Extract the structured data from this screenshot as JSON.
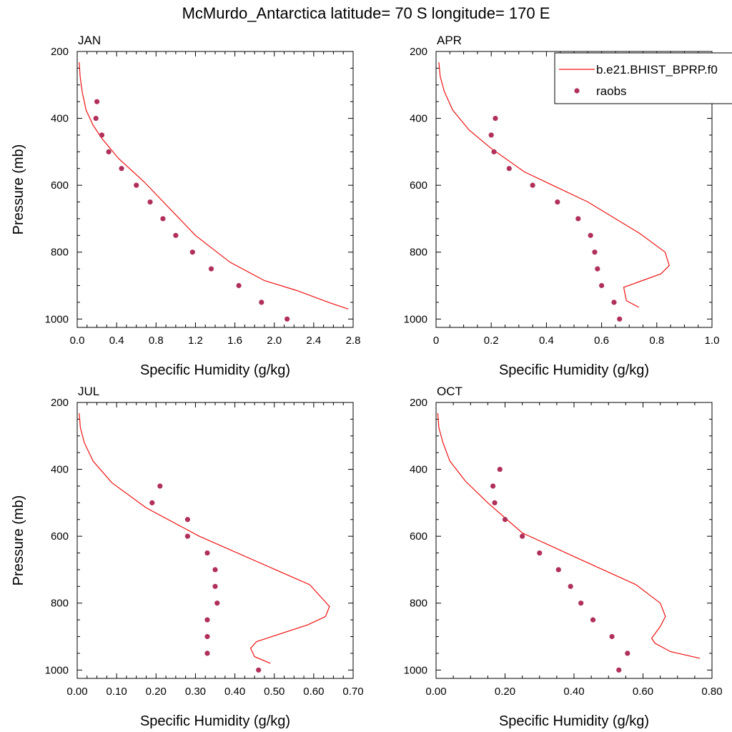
{
  "title": "McMurdo_Antarctica  latitude= 70 S longitude= 170 E",
  "legend": {
    "placement": "top-right",
    "entries": [
      {
        "label": "b.e21.BHIST_BPRP.f0",
        "style": "line",
        "color": "#ee1111"
      },
      {
        "label": "raobs",
        "style": "marker",
        "color": "#b0305a"
      }
    ]
  },
  "colors": {
    "model": "#ee1111",
    "raobs": "#b0305a"
  },
  "chart_data": [
    {
      "type": "line",
      "panel": "JAN",
      "xlabel": "Specific Humidity (g/kg)",
      "ylabel": "Pressure (mb)",
      "xlim": [
        0,
        2.8
      ],
      "ylim": [
        200,
        1025
      ],
      "y_reversed": true,
      "xticks": [
        "0.0",
        "0.4",
        "0.8",
        "1.2",
        "1.6",
        "2.0",
        "2.4",
        "2.8"
      ],
      "yticks": [
        "200",
        "400",
        "600",
        "800",
        "1000"
      ],
      "series": [
        {
          "name": "b.e21.BHIST_BPRP.f0",
          "kind": "line",
          "x": [
            0.02,
            0.03,
            0.05,
            0.09,
            0.16,
            0.25,
            0.42,
            0.68,
            1.2,
            1.55,
            1.9,
            2.23,
            2.55,
            2.75
          ],
          "y": [
            232,
            275,
            320,
            375,
            420,
            460,
            520,
            590,
            750,
            830,
            885,
            915,
            950,
            970
          ]
        },
        {
          "name": "raobs",
          "kind": "marker",
          "x": [
            0.2,
            0.19,
            0.25,
            0.32,
            0.45,
            0.6,
            0.74,
            0.87,
            1.0,
            1.17,
            1.36,
            1.64,
            1.87,
            2.13
          ],
          "y": [
            350,
            400,
            450,
            500,
            550,
            600,
            650,
            700,
            750,
            800,
            850,
            900,
            950,
            1000
          ]
        }
      ]
    },
    {
      "type": "line",
      "panel": "APR",
      "xlabel": "Specific Humidity (g/kg)",
      "ylabel": "",
      "xlim": [
        0,
        1.0
      ],
      "ylim": [
        200,
        1025
      ],
      "y_reversed": true,
      "xticks": [
        "0",
        "0.2",
        "0.4",
        "0.6",
        "0.8",
        "1.0"
      ],
      "yticks": [
        "200",
        "400",
        "600",
        "800",
        "1000"
      ],
      "series": [
        {
          "name": "b.e21.BHIST_BPRP.f0",
          "kind": "line",
          "x": [
            0.01,
            0.015,
            0.03,
            0.06,
            0.12,
            0.2,
            0.32,
            0.55,
            0.74,
            0.83,
            0.845,
            0.815,
            0.68,
            0.69,
            0.735
          ],
          "y": [
            232,
            275,
            320,
            375,
            435,
            490,
            560,
            650,
            745,
            800,
            840,
            865,
            905,
            945,
            965
          ]
        },
        {
          "name": "raobs",
          "kind": "marker",
          "x": [
            0.215,
            0.2,
            0.21,
            0.265,
            0.35,
            0.44,
            0.515,
            0.56,
            0.575,
            0.585,
            0.6,
            0.645,
            0.665
          ],
          "y": [
            400,
            450,
            500,
            550,
            600,
            650,
            700,
            750,
            800,
            850,
            900,
            950,
            1000
          ]
        }
      ]
    },
    {
      "type": "line",
      "panel": "JUL",
      "xlabel": "Specific Humidity (g/kg)",
      "ylabel": "Pressure (mb)",
      "xlim": [
        0,
        0.7
      ],
      "ylim": [
        200,
        1025
      ],
      "y_reversed": true,
      "xticks": [
        "0.00",
        "0.10",
        "0.20",
        "0.30",
        "0.40",
        "0.50",
        "0.60",
        "0.70"
      ],
      "yticks": [
        "200",
        "400",
        "600",
        "800",
        "1000"
      ],
      "series": [
        {
          "name": "b.e21.BHIST_BPRP.f0",
          "kind": "line",
          "x": [
            0.005,
            0.008,
            0.018,
            0.04,
            0.088,
            0.175,
            0.31,
            0.59,
            0.64,
            0.63,
            0.585,
            0.455,
            0.44,
            0.45,
            0.49
          ],
          "y": [
            232,
            275,
            320,
            375,
            440,
            515,
            600,
            745,
            810,
            840,
            865,
            915,
            935,
            960,
            980
          ]
        },
        {
          "name": "raobs",
          "kind": "marker",
          "x": [
            0.21,
            0.19,
            0.28,
            0.28,
            0.33,
            0.35,
            0.35,
            0.355,
            0.33,
            0.33,
            0.33,
            0.46
          ],
          "y": [
            450,
            500,
            550,
            600,
            650,
            700,
            750,
            800,
            850,
            900,
            950,
            1000
          ]
        }
      ]
    },
    {
      "type": "line",
      "panel": "OCT",
      "xlabel": "Specific Humidity (g/kg)",
      "ylabel": "",
      "xlim": [
        0,
        0.8
      ],
      "ylim": [
        200,
        1025
      ],
      "y_reversed": true,
      "xticks": [
        "0.00",
        "0.20",
        "0.40",
        "0.60",
        "0.80"
      ],
      "yticks": [
        "200",
        "400",
        "600",
        "800",
        "1000"
      ],
      "series": [
        {
          "name": "b.e21.BHIST_BPRP.f0",
          "kind": "line",
          "x": [
            0.005,
            0.008,
            0.02,
            0.04,
            0.085,
            0.15,
            0.25,
            0.42,
            0.58,
            0.65,
            0.665,
            0.65,
            0.625,
            0.635,
            0.68,
            0.765
          ],
          "y": [
            232,
            275,
            320,
            375,
            435,
            500,
            590,
            670,
            745,
            800,
            840,
            870,
            905,
            920,
            945,
            965
          ]
        },
        {
          "name": "raobs",
          "kind": "marker",
          "x": [
            0.185,
            0.165,
            0.17,
            0.2,
            0.25,
            0.3,
            0.355,
            0.39,
            0.42,
            0.455,
            0.51,
            0.555,
            0.53
          ],
          "y": [
            400,
            450,
            500,
            550,
            600,
            650,
            700,
            750,
            800,
            850,
            900,
            950,
            1000
          ]
        }
      ]
    }
  ]
}
